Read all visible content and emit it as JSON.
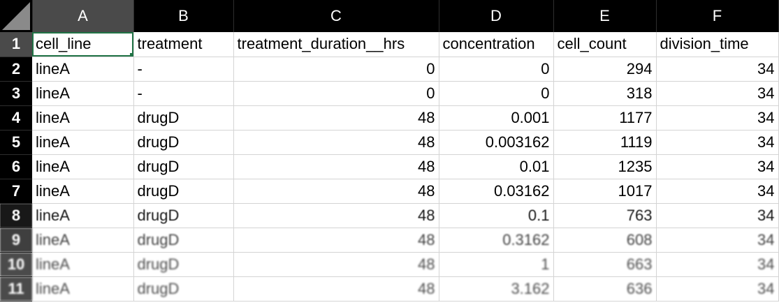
{
  "spreadsheet": {
    "column_headers": [
      "A",
      "B",
      "C",
      "D",
      "E",
      "F"
    ],
    "selected_cell": "A1",
    "accent_color": "#217346",
    "rows": [
      {
        "num": "1",
        "cells": [
          "cell_line",
          "treatment",
          "treatment_duration__hrs",
          "concentration",
          "cell_count",
          "division_time"
        ]
      },
      {
        "num": "2",
        "cells": [
          "lineA",
          "-",
          "0",
          "0",
          "294",
          "34"
        ]
      },
      {
        "num": "3",
        "cells": [
          "lineA",
          "-",
          "0",
          "0",
          "318",
          "34"
        ]
      },
      {
        "num": "4",
        "cells": [
          "lineA",
          "drugD",
          "48",
          "0.001",
          "1177",
          "34"
        ]
      },
      {
        "num": "5",
        "cells": [
          "lineA",
          "drugD",
          "48",
          "0.003162",
          "1119",
          "34"
        ]
      },
      {
        "num": "6",
        "cells": [
          "lineA",
          "drugD",
          "48",
          "0.01",
          "1235",
          "34"
        ]
      },
      {
        "num": "7",
        "cells": [
          "lineA",
          "drugD",
          "48",
          "0.03162",
          "1017",
          "34"
        ]
      },
      {
        "num": "8",
        "cells": [
          "lineA",
          "drugD",
          "48",
          "0.1",
          "763",
          "34"
        ]
      },
      {
        "num": "9",
        "cells": [
          "lineA",
          "drugD",
          "48",
          "0.3162",
          "608",
          "34"
        ]
      },
      {
        "num": "10",
        "cells": [
          "lineA",
          "drugD",
          "48",
          "1",
          "663",
          "34"
        ]
      },
      {
        "num": "11",
        "cells": [
          "lineA",
          "drugD",
          "48",
          "3.162",
          "636",
          "34"
        ]
      }
    ]
  }
}
